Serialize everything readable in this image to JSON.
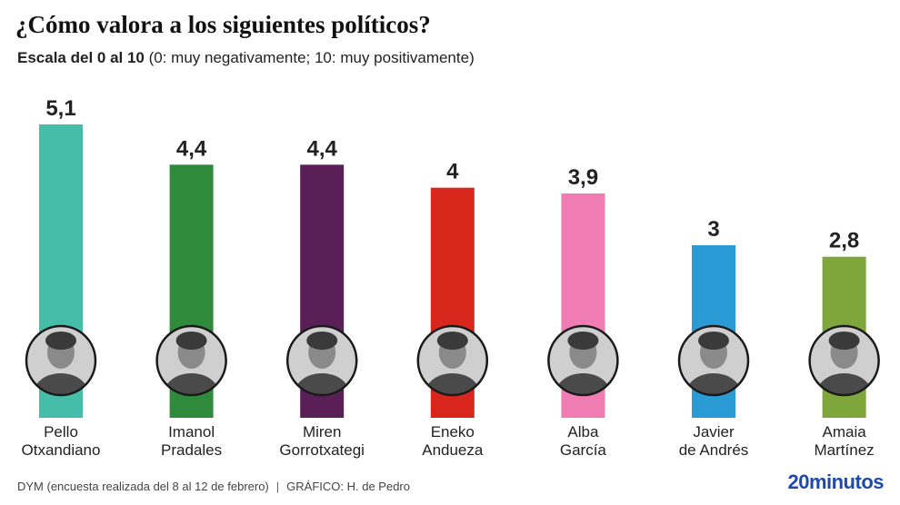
{
  "header": {
    "title": "¿Cómo valora a los siguientes políticos?",
    "subtitle_bold": "Escala del 0 al 10",
    "subtitle_rest": " (0: muy negativamente; 10: muy positivamente)"
  },
  "footer": {
    "source": "DYM (encuesta realizada del 8 al 12 de febrero)",
    "separator": "|",
    "credit": "GRÁFICO: H. de Pedro",
    "brand_num": "20",
    "brand_text": "minutos"
  },
  "colors": {
    "brand": "#1f4aa8"
  },
  "chart_data": {
    "type": "bar",
    "categories": [
      "Pello Otxandiano",
      "Imanol Pradales",
      "Miren Gorrotxategi",
      "Eneko Andueza",
      "Alba García",
      "Javier de Andrés",
      "Amaia Martínez"
    ],
    "values": [
      5.1,
      4.4,
      4.4,
      4.0,
      3.9,
      3.0,
      2.8
    ],
    "data_labels": [
      "5,1",
      "4,4",
      "4,4",
      "4",
      "3,9",
      "3",
      "2,8"
    ],
    "name_lines": [
      [
        "Pello",
        "Otxandiano"
      ],
      [
        "Imanol",
        "Pradales"
      ],
      [
        "Miren",
        "Gorrotxategi"
      ],
      [
        "Eneko",
        "Andueza"
      ],
      [
        "Alba",
        "García"
      ],
      [
        "Javier",
        "de Andrés"
      ],
      [
        "Amaia",
        "Martínez"
      ]
    ],
    "bar_colors": [
      "#45bda8",
      "#2f8a3b",
      "#5a1f57",
      "#d9261c",
      "#ef7db3",
      "#2b9bd6",
      "#7ea63b"
    ],
    "photo_icons": [
      "portrait-photo",
      "portrait-photo",
      "portrait-photo",
      "portrait-photo",
      "portrait-photo",
      "portrait-photo",
      "portrait-photo"
    ],
    "ylim": [
      0,
      5.1
    ],
    "grid": false,
    "legend": "none"
  }
}
